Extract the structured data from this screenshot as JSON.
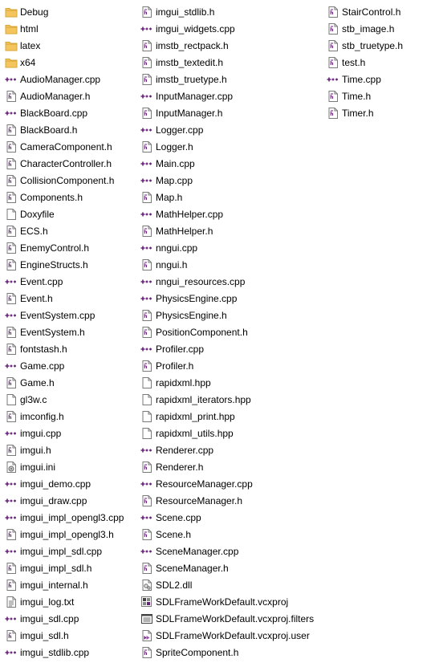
{
  "icons": {
    "folder-icon": "folder",
    "cpp-file-icon": "cpp-source",
    "h-file-icon": "header",
    "generic-file-icon": "blank-document",
    "text-file-icon": "text-document",
    "ini-file-icon": "settings-document",
    "dll-file-icon": "library",
    "vcxproj-file-icon": "visual-studio-project",
    "filters-file-icon": "visual-studio-filters",
    "user-file-icon": "visual-studio-user"
  },
  "colors": {
    "folder": "#F4C55D",
    "folder_dark": "#D9A737",
    "cpp_accent": "#68217A",
    "header_accent": "#68217A",
    "outline": "#7A7A7A"
  },
  "columns": [
    [
      {
        "name": "Debug",
        "type": "folder"
      },
      {
        "name": "html",
        "type": "folder"
      },
      {
        "name": "latex",
        "type": "folder"
      },
      {
        "name": "x64",
        "type": "folder"
      },
      {
        "name": "AudioManager.cpp",
        "type": "cpp"
      },
      {
        "name": "AudioManager.h",
        "type": "h"
      },
      {
        "name": "BlackBoard.cpp",
        "type": "cpp"
      },
      {
        "name": "BlackBoard.h",
        "type": "h"
      },
      {
        "name": "CameraComponent.h",
        "type": "h"
      },
      {
        "name": "CharacterController.h",
        "type": "h"
      },
      {
        "name": "CollisionComponent.h",
        "type": "h"
      },
      {
        "name": "Components.h",
        "type": "h"
      },
      {
        "name": "Doxyfile",
        "type": "generic"
      },
      {
        "name": "ECS.h",
        "type": "h"
      },
      {
        "name": "EnemyControl.h",
        "type": "h"
      },
      {
        "name": "EngineStructs.h",
        "type": "h"
      },
      {
        "name": "Event.cpp",
        "type": "cpp"
      },
      {
        "name": "Event.h",
        "type": "h"
      },
      {
        "name": "EventSystem.cpp",
        "type": "cpp"
      },
      {
        "name": "EventSystem.h",
        "type": "h"
      },
      {
        "name": "fontstash.h",
        "type": "h"
      },
      {
        "name": "Game.cpp",
        "type": "cpp"
      },
      {
        "name": "Game.h",
        "type": "h"
      },
      {
        "name": "gl3w.c",
        "type": "generic"
      },
      {
        "name": "imconfig.h",
        "type": "h"
      },
      {
        "name": "imgui.cpp",
        "type": "cpp"
      },
      {
        "name": "imgui.h",
        "type": "h"
      },
      {
        "name": "imgui.ini",
        "type": "ini"
      },
      {
        "name": "imgui_demo.cpp",
        "type": "cpp"
      },
      {
        "name": "imgui_draw.cpp",
        "type": "cpp"
      },
      {
        "name": "imgui_impl_opengl3.cpp",
        "type": "cpp"
      },
      {
        "name": "imgui_impl_opengl3.h",
        "type": "h"
      },
      {
        "name": "imgui_impl_sdl.cpp",
        "type": "cpp"
      },
      {
        "name": "imgui_impl_sdl.h",
        "type": "h"
      },
      {
        "name": "imgui_internal.h",
        "type": "h"
      },
      {
        "name": "imgui_log.txt",
        "type": "txt"
      },
      {
        "name": "imgui_sdl.cpp",
        "type": "cpp"
      },
      {
        "name": "imgui_sdl.h",
        "type": "h"
      },
      {
        "name": "imgui_stdlib.cpp",
        "type": "cpp"
      }
    ],
    [
      {
        "name": "imgui_stdlib.h",
        "type": "h"
      },
      {
        "name": "imgui_widgets.cpp",
        "type": "cpp"
      },
      {
        "name": "imstb_rectpack.h",
        "type": "h"
      },
      {
        "name": "imstb_textedit.h",
        "type": "h"
      },
      {
        "name": "imstb_truetype.h",
        "type": "h"
      },
      {
        "name": "InputManager.cpp",
        "type": "cpp"
      },
      {
        "name": "InputManager.h",
        "type": "h"
      },
      {
        "name": "Logger.cpp",
        "type": "cpp"
      },
      {
        "name": "Logger.h",
        "type": "h"
      },
      {
        "name": "Main.cpp",
        "type": "cpp"
      },
      {
        "name": "Map.cpp",
        "type": "cpp"
      },
      {
        "name": "Map.h",
        "type": "h"
      },
      {
        "name": "MathHelper.cpp",
        "type": "cpp"
      },
      {
        "name": "MathHelper.h",
        "type": "h"
      },
      {
        "name": "nngui.cpp",
        "type": "cpp"
      },
      {
        "name": "nngui.h",
        "type": "h"
      },
      {
        "name": "nngui_resources.cpp",
        "type": "cpp"
      },
      {
        "name": "PhysicsEngine.cpp",
        "type": "cpp"
      },
      {
        "name": "PhysicsEngine.h",
        "type": "h"
      },
      {
        "name": "PositionComponent.h",
        "type": "h"
      },
      {
        "name": "Profiler.cpp",
        "type": "cpp"
      },
      {
        "name": "Profiler.h",
        "type": "h"
      },
      {
        "name": "rapidxml.hpp",
        "type": "generic"
      },
      {
        "name": "rapidxml_iterators.hpp",
        "type": "generic"
      },
      {
        "name": "rapidxml_print.hpp",
        "type": "generic"
      },
      {
        "name": "rapidxml_utils.hpp",
        "type": "generic"
      },
      {
        "name": "Renderer.cpp",
        "type": "cpp"
      },
      {
        "name": "Renderer.h",
        "type": "h"
      },
      {
        "name": "ResourceManager.cpp",
        "type": "cpp"
      },
      {
        "name": "ResourceManager.h",
        "type": "h"
      },
      {
        "name": "Scene.cpp",
        "type": "cpp"
      },
      {
        "name": "Scene.h",
        "type": "h"
      },
      {
        "name": "SceneManager.cpp",
        "type": "cpp"
      },
      {
        "name": "SceneManager.h",
        "type": "h"
      },
      {
        "name": "SDL2.dll",
        "type": "dll"
      },
      {
        "name": "SDLFrameWorkDefault.vcxproj",
        "type": "vcxproj"
      },
      {
        "name": "SDLFrameWorkDefault.vcxproj.filters",
        "type": "filters"
      },
      {
        "name": "SDLFrameWorkDefault.vcxproj.user",
        "type": "user"
      },
      {
        "name": "SpriteComponent.h",
        "type": "h"
      }
    ],
    [
      {
        "name": "StairControl.h",
        "type": "h"
      },
      {
        "name": "stb_image.h",
        "type": "h"
      },
      {
        "name": "stb_truetype.h",
        "type": "h"
      },
      {
        "name": "test.h",
        "type": "h"
      },
      {
        "name": "Time.cpp",
        "type": "cpp"
      },
      {
        "name": "Time.h",
        "type": "h"
      },
      {
        "name": "Timer.h",
        "type": "h"
      }
    ]
  ]
}
